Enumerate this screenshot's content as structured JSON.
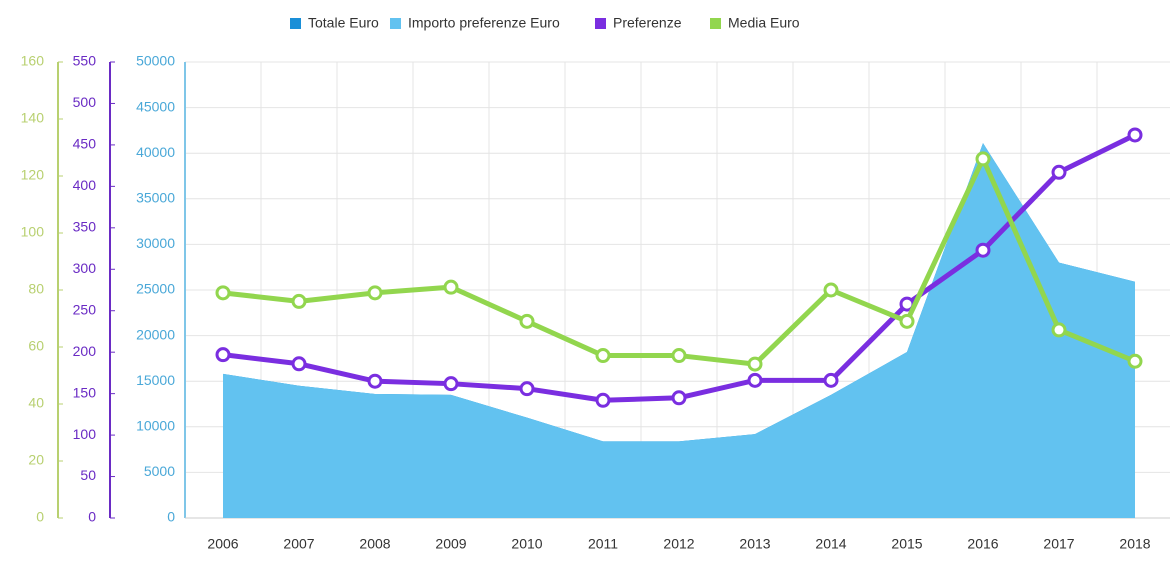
{
  "chart_data": {
    "type": "area-line",
    "categories": [
      "2006",
      "2007",
      "2008",
      "2009",
      "2010",
      "2011",
      "2012",
      "2013",
      "2014",
      "2015",
      "2016",
      "2017",
      "2018"
    ],
    "series": [
      {
        "name": "Totale Euro",
        "color": "#1a8fd8",
        "type": "area",
        "axis": "y",
        "values": [
          15800,
          14500,
          13600,
          13500,
          11000,
          8400,
          8400,
          9200,
          13500,
          18200,
          41100,
          28000,
          25900
        ]
      },
      {
        "name": "Importo preferenze Euro",
        "color": "#62c2f0",
        "type": "area",
        "axis": "y",
        "values": [
          15800,
          14500,
          13600,
          13500,
          11000,
          8400,
          8400,
          9200,
          13500,
          18200,
          41100,
          28000,
          25900
        ]
      },
      {
        "name": "Preferenze",
        "color": "#7a2ee0",
        "type": "line",
        "axis": "y2",
        "values": [
          197,
          186,
          165,
          162,
          156,
          142,
          145,
          166,
          166,
          258,
          323,
          417,
          462
        ]
      },
      {
        "name": "Media Euro",
        "color": "#92d64e",
        "type": "line",
        "axis": "y3",
        "values": [
          79,
          76,
          79,
          81,
          69,
          57,
          57,
          54,
          80,
          69,
          126,
          66,
          55
        ]
      }
    ],
    "ylim": [
      0,
      50000
    ],
    "yticks": [
      0,
      5000,
      10000,
      15000,
      20000,
      25000,
      30000,
      35000,
      40000,
      45000,
      50000
    ],
    "y2lim": [
      0,
      550
    ],
    "y2ticks": [
      0,
      50,
      100,
      150,
      200,
      250,
      300,
      350,
      400,
      450,
      500,
      550
    ],
    "y3lim": [
      0,
      160
    ],
    "y3ticks": [
      0,
      20,
      40,
      60,
      80,
      100,
      120,
      140,
      160
    ],
    "grid": true,
    "legend": "top"
  }
}
